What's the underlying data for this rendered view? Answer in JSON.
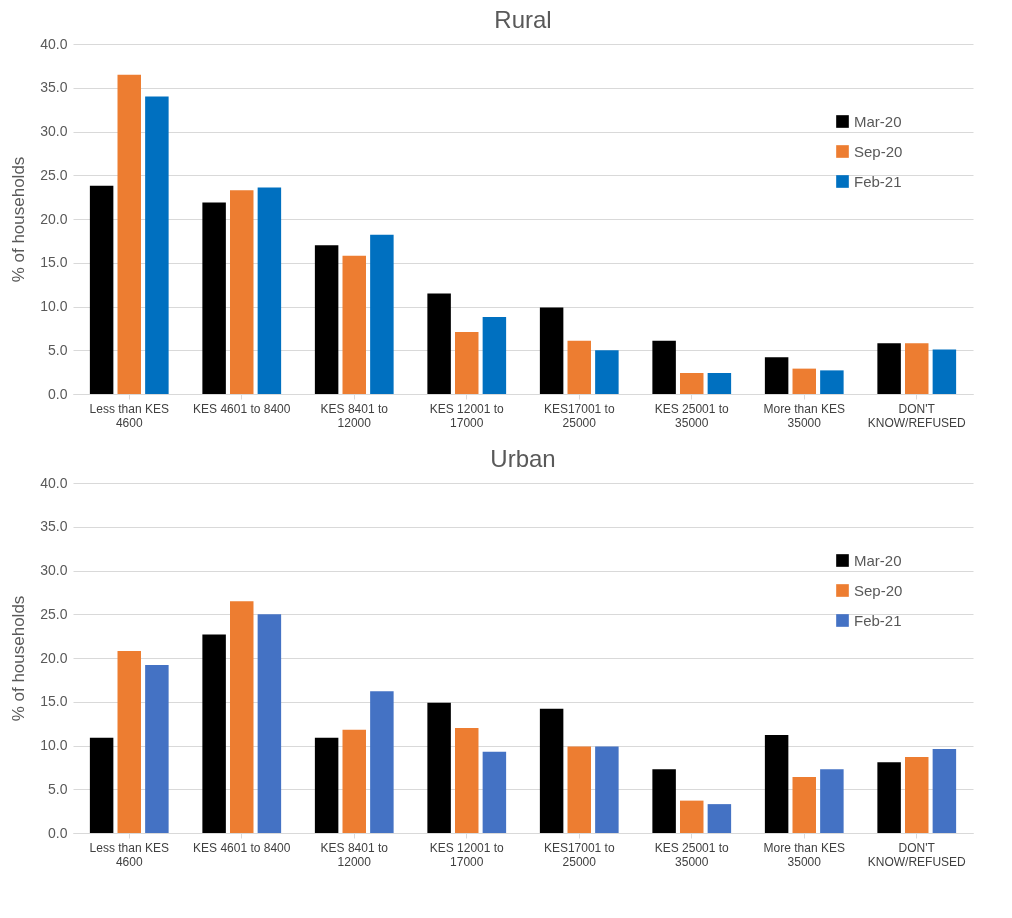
{
  "chart_data": [
    {
      "type": "bar",
      "title": "Rural",
      "ylabel": "% of households",
      "categories": [
        "Less than KES 4600",
        "KES 4601 to 8400",
        "KES 8401 to 12000",
        "KES 12001 to 17000",
        "KES17001 to 25000",
        "KES 25001 to 35000",
        "More than KES 35000",
        "DON'T KNOW/REFUSED"
      ],
      "series": [
        {
          "name": "Mar-20",
          "color": "#000000",
          "values": [
            23.8,
            21.9,
            17.0,
            11.5,
            9.9,
            6.1,
            4.2,
            5.8
          ]
        },
        {
          "name": "Sep-20",
          "color": "#ed7d31",
          "values": [
            36.5,
            23.3,
            15.8,
            7.1,
            6.1,
            2.4,
            2.9,
            5.8
          ]
        },
        {
          "name": "Feb-21",
          "color": "#0070c0",
          "values": [
            34.0,
            23.6,
            18.2,
            8.8,
            5.0,
            2.4,
            2.7,
            5.1
          ]
        }
      ],
      "ylim": [
        0,
        40
      ],
      "yticks": [
        {
          "value": 0,
          "label": "0.0"
        },
        {
          "value": 5,
          "label": "5.0"
        },
        {
          "value": 10,
          "label": "10.0"
        },
        {
          "value": 15,
          "label": "15.0"
        },
        {
          "value": 20,
          "label": "20.0"
        },
        {
          "value": 25,
          "label": "25.0"
        },
        {
          "value": 30,
          "label": "30.0"
        },
        {
          "value": 35,
          "label": "35.0"
        },
        {
          "value": 40,
          "label": "40.0"
        }
      ],
      "grid": "y",
      "legend": "top right"
    },
    {
      "type": "bar",
      "title": "Urban",
      "ylabel": "% of households",
      "categories": [
        "Less than KES 4600",
        "KES 4601 to 8400",
        "KES 8401 to 12000",
        "KES 12001 to 17000",
        "KES17001 to 25000",
        "KES 25001 to 35000",
        "More than KES 35000",
        "DON'T KNOW/REFUSED"
      ],
      "series": [
        {
          "name": "Mar-20",
          "color": "#000000",
          "values": [
            10.9,
            22.7,
            10.9,
            14.9,
            14.2,
            7.3,
            11.2,
            8.1
          ]
        },
        {
          "name": "Sep-20",
          "color": "#ed7d31",
          "values": [
            20.8,
            26.5,
            11.8,
            12.0,
            9.9,
            3.7,
            6.4,
            8.7
          ]
        },
        {
          "name": "Feb-21",
          "color": "#4472c4",
          "values": [
            19.2,
            25.0,
            16.2,
            9.3,
            9.9,
            3.3,
            7.3,
            9.6
          ]
        }
      ],
      "ylim": [
        0,
        40
      ],
      "yticks": [
        {
          "value": 0,
          "label": "0.0"
        },
        {
          "value": 5,
          "label": "5.0"
        },
        {
          "value": 10,
          "label": "10.0"
        },
        {
          "value": 15,
          "label": "15.0"
        },
        {
          "value": 20,
          "label": "20.0"
        },
        {
          "value": 25,
          "label": "25.0"
        },
        {
          "value": 30,
          "label": "30.0"
        },
        {
          "value": 35,
          "label": "35.0"
        },
        {
          "value": 40,
          "label": "40.0"
        }
      ],
      "grid": "y",
      "legend": "top right"
    }
  ]
}
